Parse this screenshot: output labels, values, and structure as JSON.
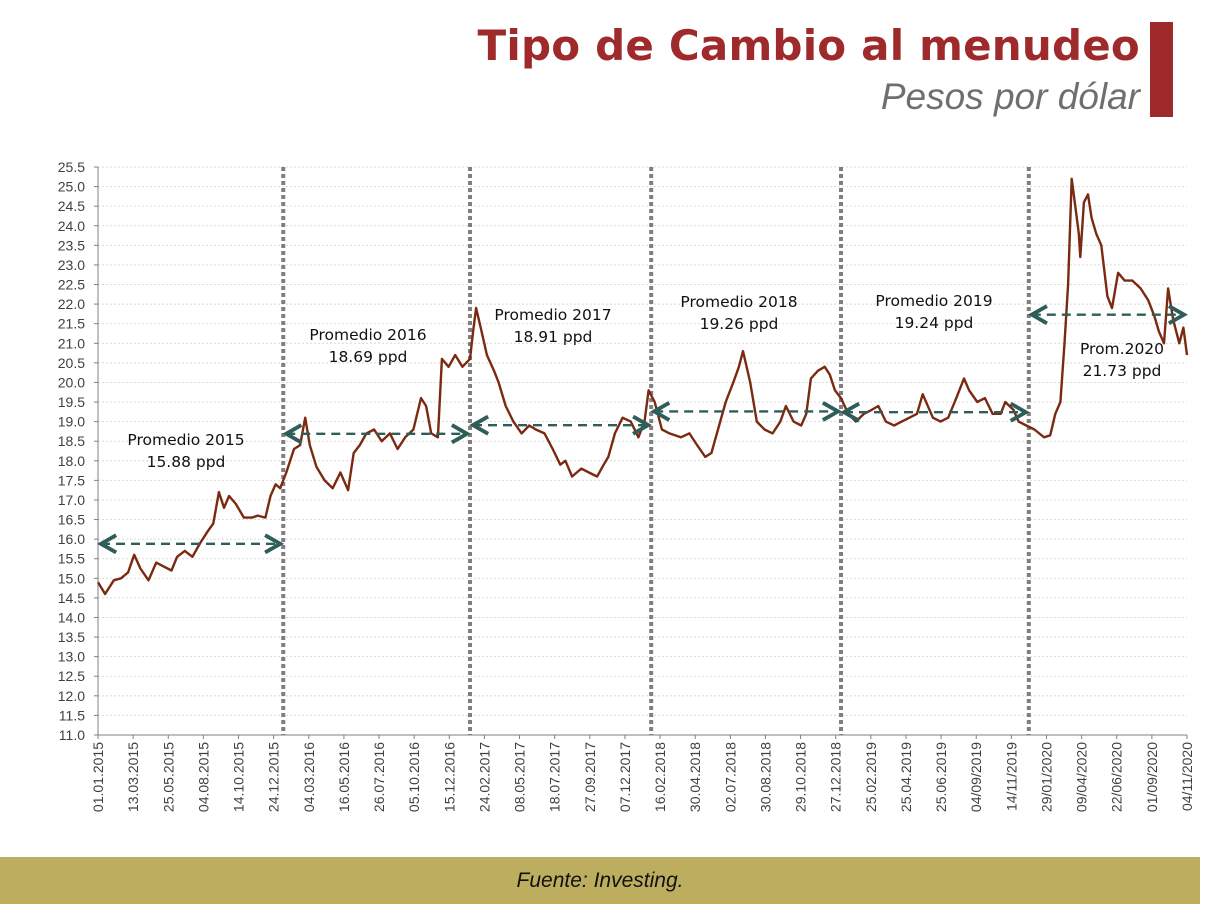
{
  "header": {
    "title": "Tipo de Cambio al menudeo",
    "subtitle": "Pesos por dólar"
  },
  "footer": {
    "source": "Fuente: Investing."
  },
  "colors": {
    "brand_red": "#9e2a2b",
    "line": "#7a2a10",
    "arrow": "#2f5d5a",
    "separator": "#7f7f7f",
    "footer_bg": "#bcae5e"
  },
  "chart_data": {
    "type": "line",
    "title": "Tipo de Cambio al menudeo",
    "subtitle": "Pesos por dólar",
    "xlabel": "",
    "ylabel": "",
    "ylim": [
      11.0,
      25.5
    ],
    "ystep": 0.5,
    "grid": true,
    "x_tick_labels": [
      "01.01.2015",
      "13.03.2015",
      "25.05.2015",
      "04.08.2015",
      "14.10.2015",
      "24.12.2015",
      "04.03.2016",
      "16.05.2016",
      "26.07.2016",
      "05.10.2016",
      "15.12.2016",
      "24.02.2017",
      "08.05.2017",
      "18.07.2017",
      "27.09.2017",
      "07.12.2017",
      "16.02.2018",
      "30.04.2018",
      "02.07.2018",
      "30.08.2018",
      "29.10.2018",
      "27.12.2018",
      "25.02.2019",
      "25.04.2019",
      "25.06.2019",
      "04/09/2019",
      "14/11/2019",
      "29/01/2020",
      "09/04/2020",
      "22/06/2020",
      "01/09/2020",
      "04/11/2020"
    ],
    "series": [
      {
        "values": [
          [
            "2015-01-01",
            14.9
          ],
          [
            "2015-01-15",
            14.6
          ],
          [
            "2015-02-01",
            14.95
          ],
          [
            "2015-02-15",
            15.0
          ],
          [
            "2015-03-01",
            15.15
          ],
          [
            "2015-03-13",
            15.6
          ],
          [
            "2015-03-25",
            15.25
          ],
          [
            "2015-04-10",
            14.95
          ],
          [
            "2015-04-25",
            15.4
          ],
          [
            "2015-05-10",
            15.3
          ],
          [
            "2015-05-25",
            15.2
          ],
          [
            "2015-06-05",
            15.55
          ],
          [
            "2015-06-20",
            15.7
          ],
          [
            "2015-07-05",
            15.55
          ],
          [
            "2015-07-20",
            15.9
          ],
          [
            "2015-08-04",
            16.2
          ],
          [
            "2015-08-15",
            16.4
          ],
          [
            "2015-08-26",
            17.2
          ],
          [
            "2015-09-05",
            16.8
          ],
          [
            "2015-09-15",
            17.1
          ],
          [
            "2015-09-28",
            16.9
          ],
          [
            "2015-10-14",
            16.55
          ],
          [
            "2015-10-30",
            16.55
          ],
          [
            "2015-11-10",
            16.6
          ],
          [
            "2015-11-25",
            16.55
          ],
          [
            "2015-12-05",
            17.1
          ],
          [
            "2015-12-15",
            17.4
          ],
          [
            "2015-12-24",
            17.3
          ],
          [
            "2016-01-05",
            17.7
          ],
          [
            "2016-01-20",
            18.3
          ],
          [
            "2016-02-01",
            18.4
          ],
          [
            "2016-02-11",
            19.1
          ],
          [
            "2016-02-20",
            18.4
          ],
          [
            "2016-03-04",
            17.85
          ],
          [
            "2016-03-20",
            17.5
          ],
          [
            "2016-04-05",
            17.3
          ],
          [
            "2016-04-20",
            17.7
          ],
          [
            "2016-05-05",
            17.25
          ],
          [
            "2016-05-16",
            18.2
          ],
          [
            "2016-05-28",
            18.4
          ],
          [
            "2016-06-10",
            18.7
          ],
          [
            "2016-06-25",
            18.8
          ],
          [
            "2016-07-10",
            18.5
          ],
          [
            "2016-07-26",
            18.7
          ],
          [
            "2016-08-10",
            18.3
          ],
          [
            "2016-08-25",
            18.6
          ],
          [
            "2016-09-10",
            18.8
          ],
          [
            "2016-09-25",
            19.6
          ],
          [
            "2016-10-05",
            19.4
          ],
          [
            "2016-10-15",
            18.7
          ],
          [
            "2016-10-28",
            18.6
          ],
          [
            "2016-11-05",
            20.6
          ],
          [
            "2016-11-18",
            20.4
          ],
          [
            "2016-12-01",
            20.7
          ],
          [
            "2016-12-15",
            20.4
          ],
          [
            "2016-12-30",
            20.6
          ],
          [
            "2017-01-05",
            21.3
          ],
          [
            "2017-01-11",
            21.9
          ],
          [
            "2017-01-20",
            21.4
          ],
          [
            "2017-02-01",
            20.7
          ],
          [
            "2017-02-15",
            20.3
          ],
          [
            "2017-02-24",
            20.0
          ],
          [
            "2017-03-10",
            19.4
          ],
          [
            "2017-03-25",
            19.0
          ],
          [
            "2017-04-10",
            18.7
          ],
          [
            "2017-04-25",
            18.9
          ],
          [
            "2017-05-08",
            18.8
          ],
          [
            "2017-05-25",
            18.7
          ],
          [
            "2017-06-10",
            18.3
          ],
          [
            "2017-06-25",
            17.9
          ],
          [
            "2017-07-05",
            18.0
          ],
          [
            "2017-07-18",
            17.6
          ],
          [
            "2017-08-05",
            17.8
          ],
          [
            "2017-08-20",
            17.7
          ],
          [
            "2017-09-05",
            17.6
          ],
          [
            "2017-09-18",
            17.9
          ],
          [
            "2017-09-27",
            18.1
          ],
          [
            "2017-10-10",
            18.7
          ],
          [
            "2017-10-25",
            19.1
          ],
          [
            "2017-11-10",
            19.0
          ],
          [
            "2017-11-25",
            18.6
          ],
          [
            "2017-12-07",
            19.0
          ],
          [
            "2017-12-15",
            19.8
          ],
          [
            "2017-12-27",
            19.5
          ],
          [
            "2018-01-10",
            18.8
          ],
          [
            "2018-01-25",
            18.7
          ],
          [
            "2018-02-16",
            18.6
          ],
          [
            "2018-03-05",
            18.7
          ],
          [
            "2018-03-20",
            18.4
          ],
          [
            "2018-04-05",
            18.1
          ],
          [
            "2018-04-17",
            18.2
          ],
          [
            "2018-04-30",
            18.8
          ],
          [
            "2018-05-15",
            19.5
          ],
          [
            "2018-05-30",
            20.0
          ],
          [
            "2018-06-10",
            20.4
          ],
          [
            "2018-06-18",
            20.8
          ],
          [
            "2018-07-02",
            20.0
          ],
          [
            "2018-07-15",
            19.0
          ],
          [
            "2018-07-30",
            18.8
          ],
          [
            "2018-08-15",
            18.7
          ],
          [
            "2018-08-30",
            19.0
          ],
          [
            "2018-09-10",
            19.4
          ],
          [
            "2018-09-25",
            19.0
          ],
          [
            "2018-10-10",
            18.9
          ],
          [
            "2018-10-20",
            19.2
          ],
          [
            "2018-10-29",
            20.1
          ],
          [
            "2018-11-12",
            20.3
          ],
          [
            "2018-11-25",
            20.4
          ],
          [
            "2018-12-05",
            20.2
          ],
          [
            "2018-12-15",
            19.8
          ],
          [
            "2018-12-27",
            19.6
          ],
          [
            "2019-01-10",
            19.2
          ],
          [
            "2019-01-25",
            19.0
          ],
          [
            "2019-02-10",
            19.2
          ],
          [
            "2019-02-25",
            19.3
          ],
          [
            "2019-03-10",
            19.4
          ],
          [
            "2019-03-25",
            19.0
          ],
          [
            "2019-04-10",
            18.9
          ],
          [
            "2019-04-25",
            19.0
          ],
          [
            "2019-05-10",
            19.1
          ],
          [
            "2019-05-25",
            19.2
          ],
          [
            "2019-06-05",
            19.7
          ],
          [
            "2019-06-25",
            19.1
          ],
          [
            "2019-07-10",
            19.0
          ],
          [
            "2019-07-25",
            19.1
          ],
          [
            "2019-08-10",
            19.6
          ],
          [
            "2019-08-25",
            20.1
          ],
          [
            "2019-09-04",
            19.8
          ],
          [
            "2019-09-20",
            19.5
          ],
          [
            "2019-10-05",
            19.6
          ],
          [
            "2019-10-20",
            19.2
          ],
          [
            "2019-11-05",
            19.2
          ],
          [
            "2019-11-14",
            19.5
          ],
          [
            "2019-11-30",
            19.3
          ],
          [
            "2019-12-10",
            19.0
          ],
          [
            "2019-12-25",
            18.9
          ],
          [
            "2020-01-10",
            18.8
          ],
          [
            "2020-01-29",
            18.6
          ],
          [
            "2020-02-10",
            18.65
          ],
          [
            "2020-02-20",
            19.2
          ],
          [
            "2020-03-01",
            19.5
          ],
          [
            "2020-03-09",
            21.0
          ],
          [
            "2020-03-16",
            22.5
          ],
          [
            "2020-03-23",
            25.2
          ],
          [
            "2020-04-01",
            24.3
          ],
          [
            "2020-04-06",
            23.8
          ],
          [
            "2020-04-09",
            23.2
          ],
          [
            "2020-04-16",
            24.6
          ],
          [
            "2020-04-24",
            24.8
          ],
          [
            "2020-05-01",
            24.2
          ],
          [
            "2020-05-10",
            23.8
          ],
          [
            "2020-05-20",
            23.5
          ],
          [
            "2020-06-01",
            22.2
          ],
          [
            "2020-06-10",
            21.9
          ],
          [
            "2020-06-22",
            22.8
          ],
          [
            "2020-07-05",
            22.6
          ],
          [
            "2020-07-20",
            22.6
          ],
          [
            "2020-08-05",
            22.4
          ],
          [
            "2020-08-20",
            22.1
          ],
          [
            "2020-09-01",
            21.7
          ],
          [
            "2020-09-10",
            21.3
          ],
          [
            "2020-09-20",
            21.0
          ],
          [
            "2020-09-28",
            22.4
          ],
          [
            "2020-10-08",
            21.6
          ],
          [
            "2020-10-20",
            21.0
          ],
          [
            "2020-10-28",
            21.4
          ],
          [
            "2020-11-04",
            20.7
          ]
        ]
      }
    ],
    "period_separators": [
      "2015-12-30",
      "2016-12-30",
      "2017-12-20",
      "2018-12-27",
      "2019-12-30"
    ],
    "averages": [
      {
        "label": "Promedio 2015",
        "value_text": "15.88 ppd",
        "value": 15.88,
        "start": "2015-01-01",
        "end": "2015-12-30"
      },
      {
        "label": "Promedio 2016",
        "value_text": "18.69 ppd",
        "value": 18.69,
        "start": "2015-12-30",
        "end": "2016-12-30"
      },
      {
        "label": "Promedio 2017",
        "value_text": "18.91 ppd",
        "value": 18.91,
        "start": "2016-12-30",
        "end": "2017-12-20"
      },
      {
        "label": "Promedio 2018",
        "value_text": "19.26 ppd",
        "value": 19.26,
        "start": "2017-12-20",
        "end": "2018-12-27"
      },
      {
        "label": "Promedio 2019",
        "value_text": "19.24 ppd",
        "value": 19.24,
        "start": "2018-12-27",
        "end": "2019-12-30"
      },
      {
        "label": "Prom.2020",
        "value_text": "21.73 ppd",
        "value": 21.73,
        "start": "2019-12-30",
        "end": "2020-11-04"
      }
    ]
  }
}
